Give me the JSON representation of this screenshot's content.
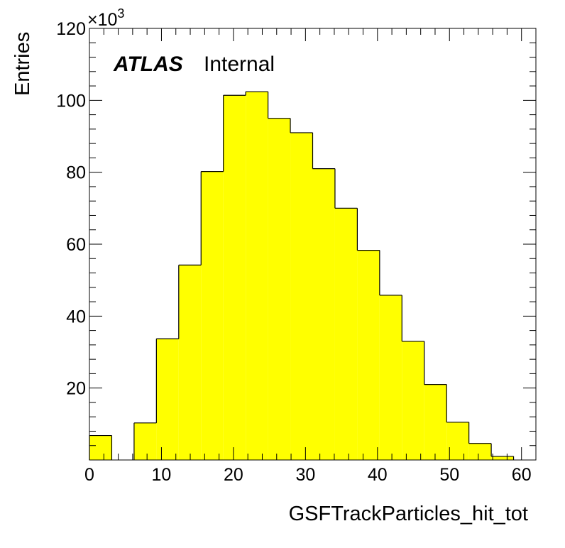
{
  "chart_data": {
    "type": "bar",
    "histogram": true,
    "xlabel": "GSFTrackParticles_hit_tot",
    "ylabel": "Entries",
    "y_multiplier": "×10",
    "y_multiplier_exp": "3",
    "experiment_label": "ATLAS",
    "status_label": "Internal",
    "xlim": [
      0,
      62
    ],
    "ylim": [
      0,
      120
    ],
    "x_ticks": [
      0,
      10,
      20,
      30,
      40,
      50,
      60
    ],
    "y_ticks": [
      20,
      40,
      60,
      80,
      100,
      120
    ],
    "fill_color": "#ffff00",
    "line_color": "#000000",
    "bin_width": 3.1,
    "bin_edges": [
      0,
      3.1,
      6.2,
      9.3,
      12.4,
      15.5,
      18.6,
      21.7,
      24.8,
      27.9,
      31.0,
      34.1,
      37.2,
      40.3,
      43.4,
      46.5,
      49.6,
      52.7,
      55.8,
      58.9,
      62.0
    ],
    "values": [
      6.8,
      0,
      10.3,
      33.7,
      54.2,
      80.2,
      101.4,
      102.4,
      95.0,
      91.0,
      81.0,
      70.0,
      58.3,
      45.8,
      33.0,
      21.0,
      10.5,
      4.6,
      1.0,
      0
    ]
  }
}
